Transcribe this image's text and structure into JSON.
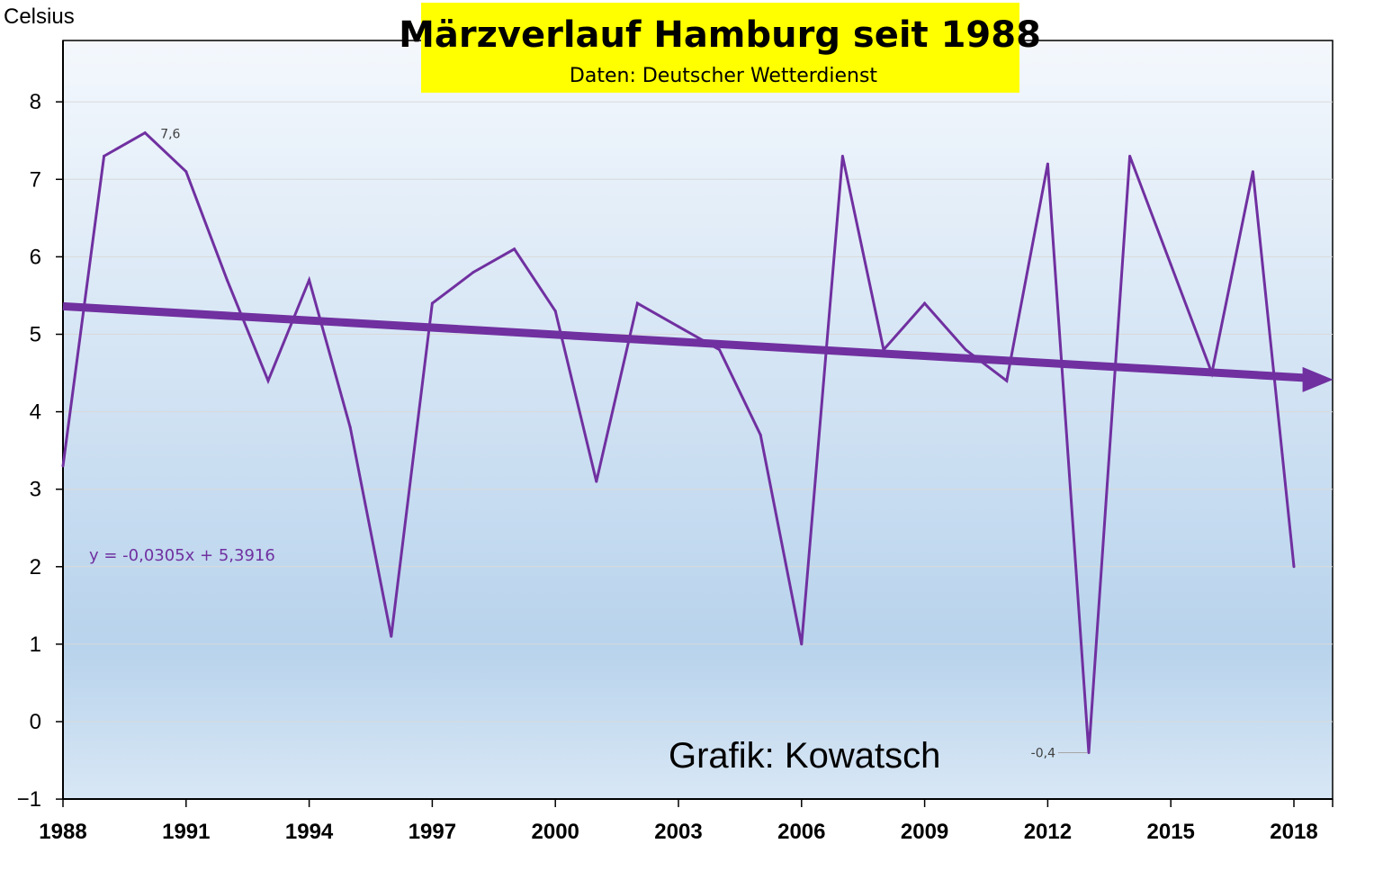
{
  "chart_data": {
    "type": "line",
    "title": "Märzverlauf Hamburg seit 1988",
    "subtitle": "Daten: Deutscher Wetterdienst",
    "ylabel": "Celsius",
    "xlabel": "",
    "credit": "Grafik: Kowatsch",
    "x": [
      1988,
      1989,
      1990,
      1991,
      1992,
      1993,
      1994,
      1995,
      1996,
      1997,
      1998,
      1999,
      2000,
      2001,
      2002,
      2003,
      2004,
      2005,
      2006,
      2007,
      2008,
      2009,
      2010,
      2011,
      2012,
      2013,
      2014,
      2015,
      2016,
      2017,
      2018
    ],
    "series": [
      {
        "values": [
          3.3,
          7.3,
          7.6,
          7.1,
          5.7,
          4.4,
          5.7,
          3.8,
          1.1,
          5.4,
          5.8,
          6.1,
          5.3,
          3.1,
          5.4,
          5.1,
          4.8,
          3.7,
          1.0,
          7.3,
          4.8,
          5.4,
          4.8,
          4.4,
          7.2,
          -0.4,
          7.3,
          5.9,
          4.5,
          7.1,
          2.0
        ],
        "color": "#7030a0"
      }
    ],
    "trendline": {
      "equation": "y = -0,0305x + 5,3916",
      "slope": -0.0305,
      "intercept": 5.3916,
      "color": "#7030a0"
    },
    "data_labels": [
      {
        "year": 1990,
        "text": "7,6"
      },
      {
        "year": 2013,
        "text": "-0,4"
      }
    ],
    "yticks": [
      "8",
      "7",
      "6",
      "5",
      "4",
      "3",
      "2",
      "1",
      "0",
      "−1"
    ],
    "ytick_values": [
      8,
      7,
      6,
      5,
      4,
      3,
      2,
      1,
      0,
      -1
    ],
    "xticks": [
      "1988",
      "1991",
      "1994",
      "1997",
      "2000",
      "2003",
      "2006",
      "2009",
      "2012",
      "2015",
      "2018"
    ],
    "xtick_values": [
      1988,
      1991,
      1994,
      1997,
      2000,
      2003,
      2006,
      2009,
      2012,
      2015,
      2018
    ],
    "ylim": [
      -1,
      8.8
    ],
    "xlim": [
      1988,
      2019
    ],
    "grid": true,
    "legend": "none",
    "colors": {
      "title_box": "#ffff00",
      "plot_bg_top": "#f4f8fd",
      "plot_bg_mid": "#b8d3ec",
      "plot_bg_bottom": "#d8e7f5",
      "grid": "#d9d9d9",
      "line": "#7030a0"
    }
  }
}
